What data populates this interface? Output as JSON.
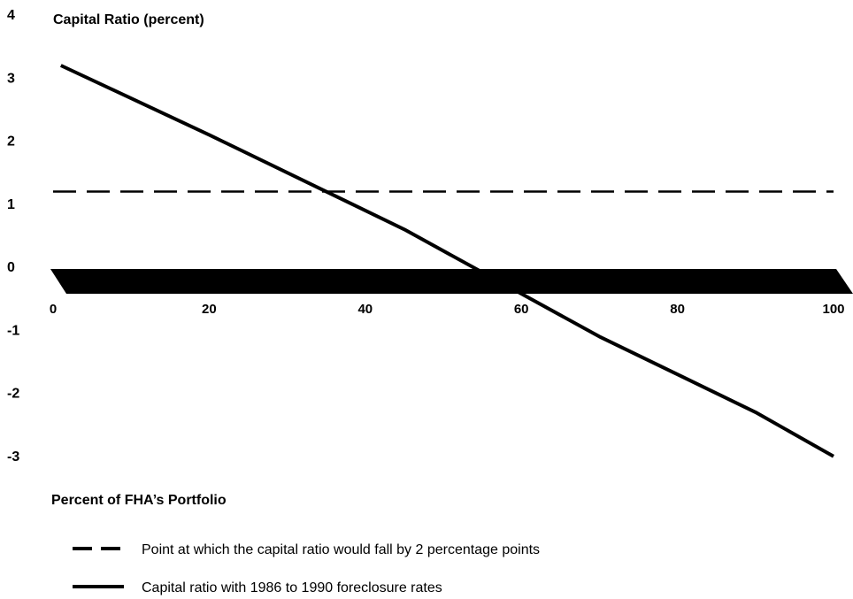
{
  "chart_data": {
    "type": "line",
    "title": "Capital Ratio (percent)",
    "xlabel": "Percent of FHA’s Portfolio",
    "ylabel": "",
    "xlim": [
      0,
      100
    ],
    "ylim": [
      -3,
      4
    ],
    "x_ticks": [
      "0",
      "20",
      "40",
      "60",
      "80",
      "100"
    ],
    "y_ticks": [
      "4",
      "3",
      "2",
      "1",
      "0",
      "-1",
      "-2",
      "-3"
    ],
    "x_tick_values": [
      0,
      20,
      40,
      60,
      80,
      100
    ],
    "y_tick_values": [
      4,
      3,
      2,
      1,
      0,
      -1,
      -2,
      -3
    ],
    "series": [
      {
        "name": "Capital ratio with 1986 to 1990 foreclosure rates",
        "style": "solid",
        "x": [
          1,
          20,
          45,
          70,
          90,
          100
        ],
        "y": [
          3.2,
          2.1,
          0.6,
          -1.1,
          -2.3,
          -3.0
        ]
      },
      {
        "name": "Point at which the capital ratio would fall by 2 percentage points",
        "style": "dashed",
        "x": [
          0,
          100
        ],
        "y": [
          1.2,
          1.2
        ]
      }
    ],
    "zero_band": {
      "y": 0
    },
    "legend": "bottom-left",
    "grid": false,
    "colors": {
      "line": "#000000",
      "band": "#000000"
    }
  }
}
